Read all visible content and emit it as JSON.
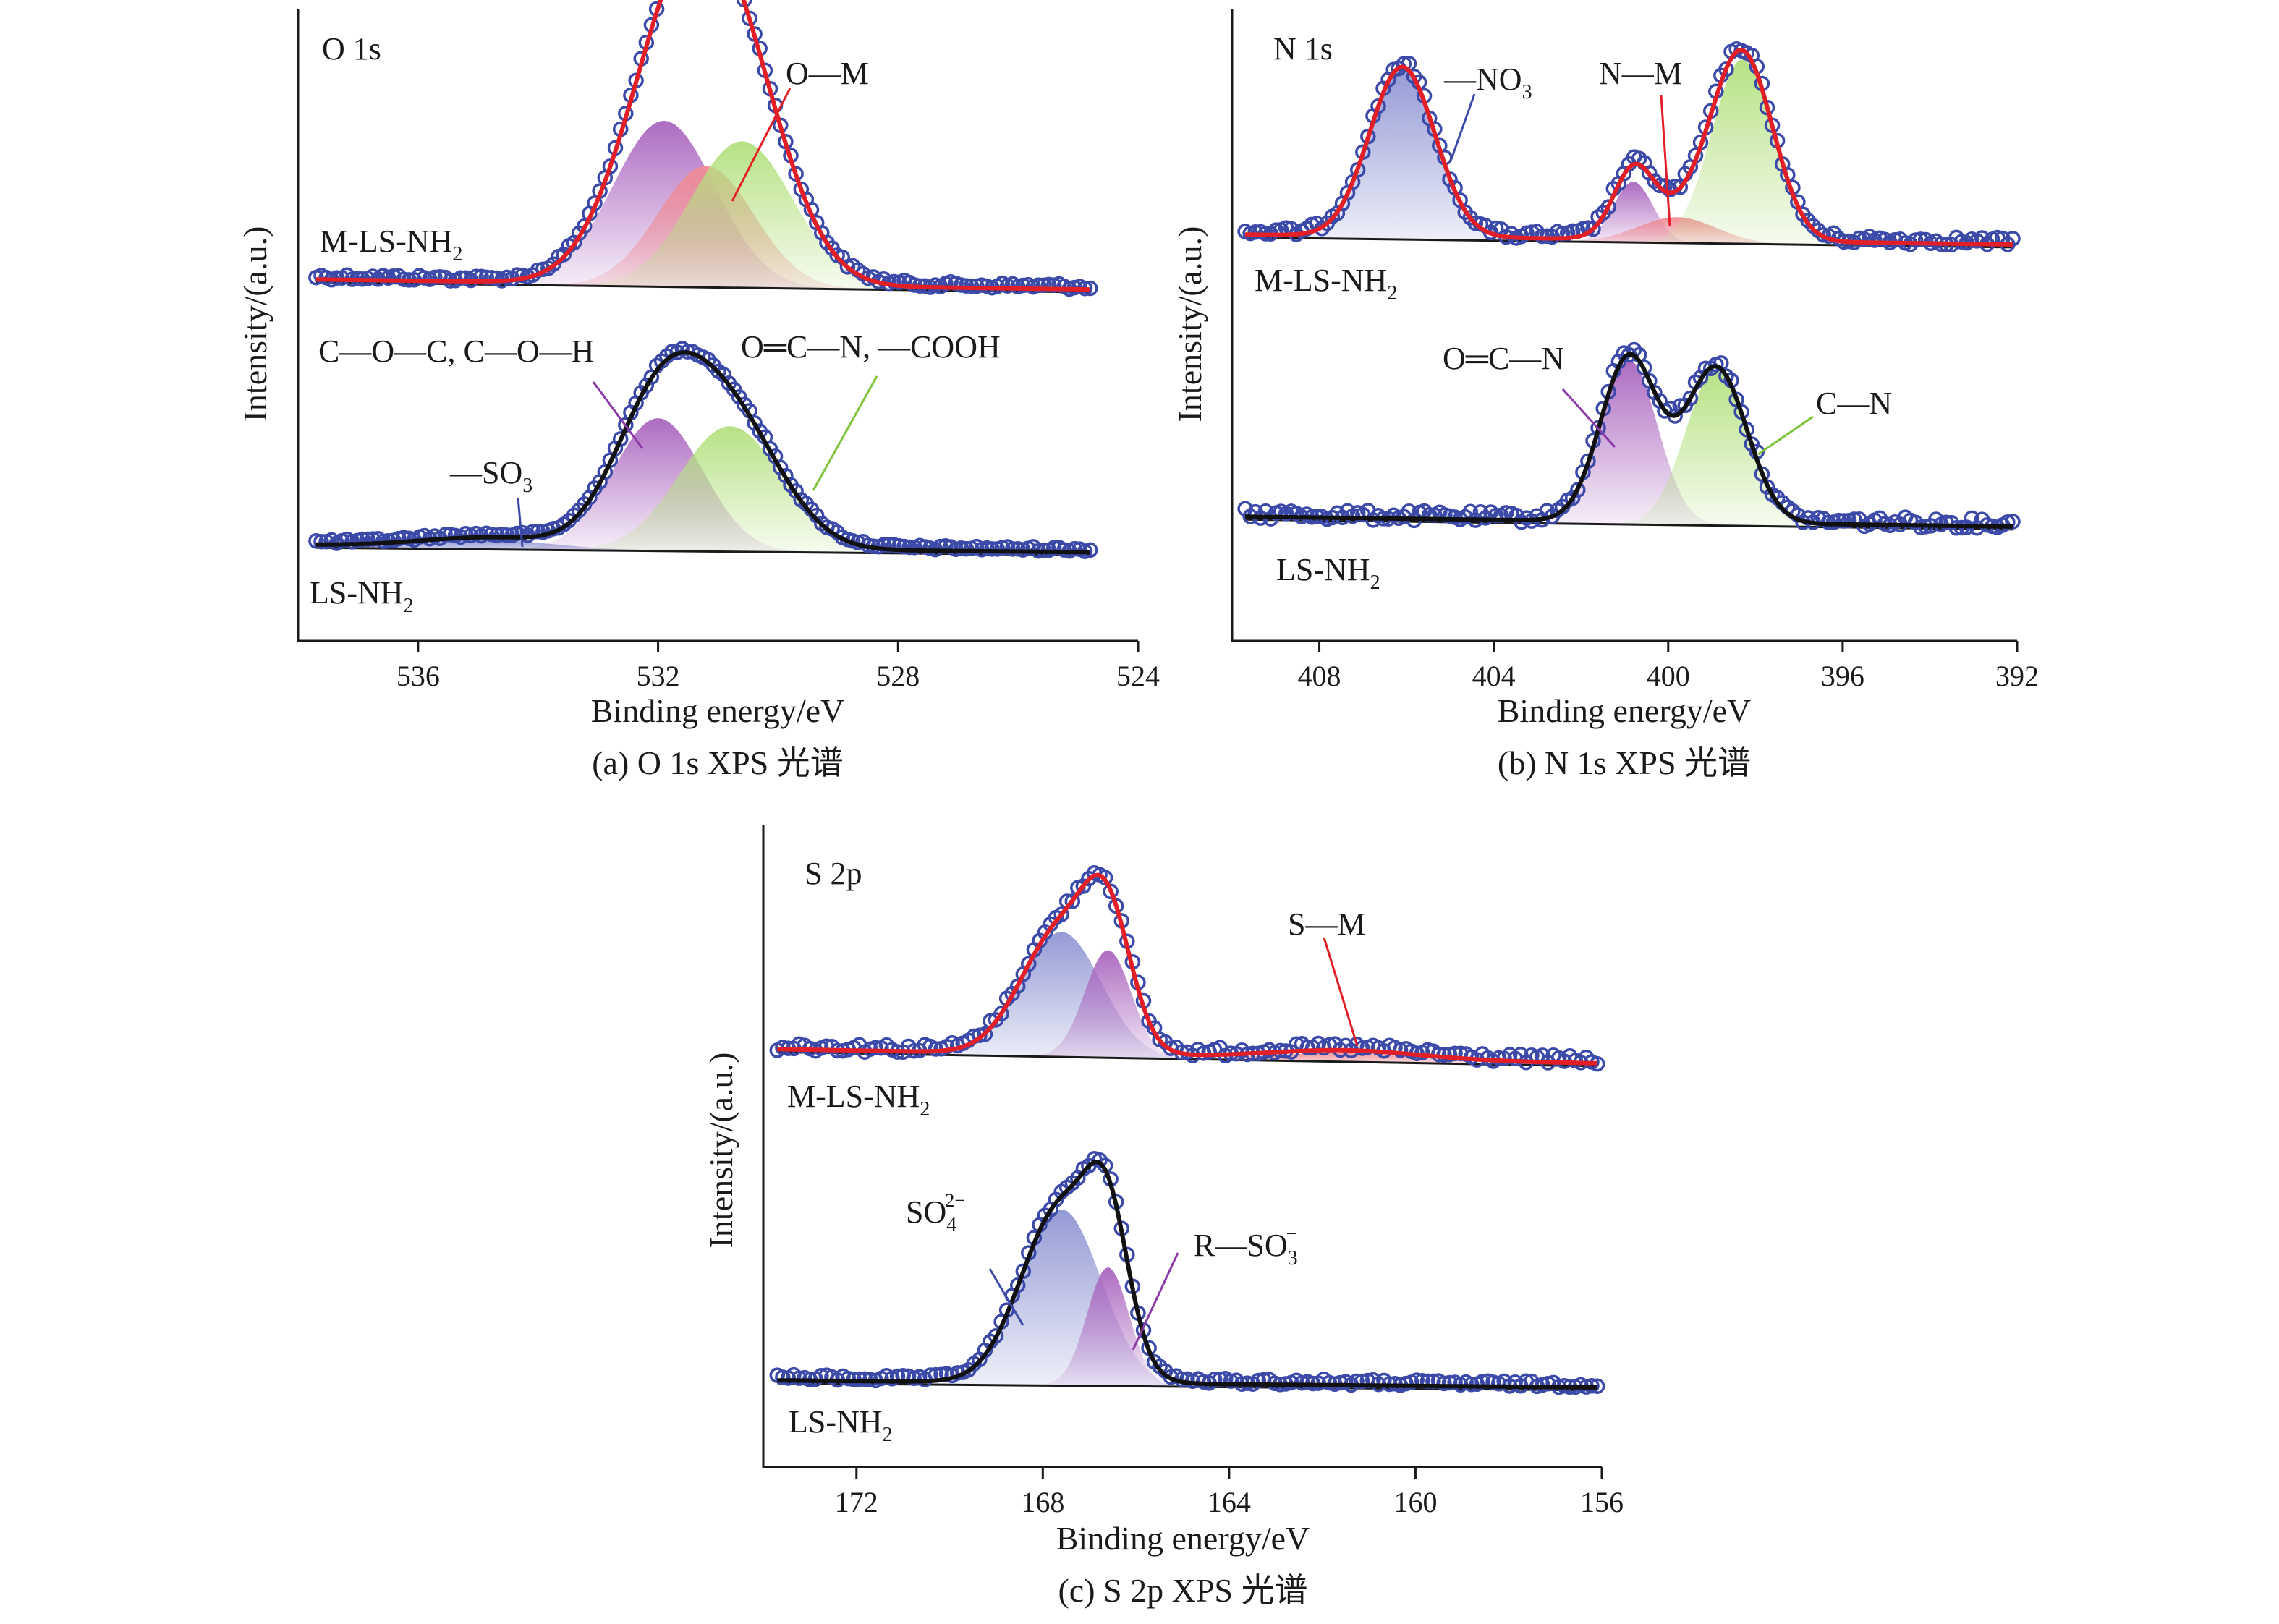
{
  "figure": {
    "colors": {
      "purple": "#a964be",
      "green": "#b3e07e",
      "pink": "#f08a93",
      "blue": "#8f95d3",
      "points": "#3b49a8",
      "fit_red": "#e21f26",
      "fit_black": "#111111"
    }
  },
  "chart_data": [
    {
      "type": "line",
      "panel_label": "O 1s",
      "caption": "(a) O 1s XPS 光谱",
      "xlabel": "Binding energy/eV",
      "ylabel": "Intensity/(a.u.)",
      "xlim": [
        538,
        524
      ],
      "xticks": [
        536,
        532,
        528,
        524
      ],
      "series": [
        {
          "name": "M-LS-NH",
          "name_sub": "2",
          "fit_color": "#e21f26",
          "components": [
            {
              "label": "",
              "center": 531.9,
              "amplitude": 0.85,
              "width": 0.85,
              "color": "#a964be"
            },
            {
              "label": "O—M",
              "label_sub": "",
              "center": 531.2,
              "amplitude": 0.62,
              "width": 0.8,
              "color": "#f08a93"
            },
            {
              "label": "",
              "center": 530.6,
              "amplitude": 0.75,
              "width": 0.85,
              "color": "#b3e07e"
            }
          ]
        },
        {
          "name": "LS-NH",
          "name_sub": "2",
          "fit_color": "#111111",
          "components": [
            {
              "label": "—SO",
              "label_sub": "3",
              "center": 534.8,
              "amplitude": 0.05,
              "width": 1.1,
              "color": "#8f95d3"
            },
            {
              "label": "C—O—C, C—O—H",
              "label_sub": "",
              "center": 532.0,
              "amplitude": 0.72,
              "width": 0.75,
              "color": "#a964be"
            },
            {
              "label": "O═C—N, —COOH",
              "label_sub": "",
              "center": 530.8,
              "amplitude": 0.68,
              "width": 0.85,
              "color": "#b3e07e"
            }
          ]
        }
      ]
    },
    {
      "type": "line",
      "panel_label": "N 1s",
      "caption": "(b) N 1s XPS 光谱",
      "xlabel": "Binding energy/eV",
      "ylabel": "Intensity/(a.u.)",
      "xlim": [
        410,
        392
      ],
      "xticks": [
        408,
        404,
        400,
        396,
        392
      ],
      "series": [
        {
          "name": "M-LS-NH",
          "name_sub": "2",
          "fit_color": "#e21f26",
          "components": [
            {
              "label": "—NO",
              "label_sub": "3",
              "center": 406.1,
              "amplitude": 0.92,
              "width": 0.75,
              "color": "#8f95d3"
            },
            {
              "label": "",
              "center": 400.8,
              "amplitude": 0.33,
              "width": 0.45,
              "color": "#a964be"
            },
            {
              "label": "N—M",
              "label_sub": "",
              "center": 399.8,
              "amplitude": 0.14,
              "width": 0.9,
              "color": "#f08a93"
            },
            {
              "label": "",
              "center": 398.3,
              "amplitude": 1.0,
              "width": 0.7,
              "color": "#b3e07e"
            }
          ]
        },
        {
          "name": "LS-NH",
          "name_sub": "2",
          "fit_color": "#111111",
          "components": [
            {
              "label": "O═C—N",
              "label_sub": "",
              "center": 400.9,
              "amplitude": 0.85,
              "width": 0.65,
              "color": "#a964be"
            },
            {
              "label": "C—N",
              "label_sub": "",
              "center": 398.9,
              "amplitude": 0.8,
              "width": 0.7,
              "color": "#b3e07e"
            }
          ]
        }
      ]
    },
    {
      "type": "line",
      "panel_label": "S 2p",
      "caption": "(c) S 2p XPS 光谱",
      "xlabel": "Binding energy/eV",
      "ylabel": "Intensity/(a.u.)",
      "xlim": [
        174,
        156
      ],
      "xticks": [
        172,
        168,
        164,
        160,
        156
      ],
      "series": [
        {
          "name": "M-LS-NH",
          "name_sub": "2",
          "fit_color": "#e21f26",
          "components": [
            {
              "label": "",
              "center": 167.6,
              "amplitude": 0.72,
              "width": 0.85,
              "color": "#8f95d3"
            },
            {
              "label": "",
              "center": 166.6,
              "amplitude": 0.62,
              "width": 0.5,
              "color": "#a964be"
            },
            {
              "label": "S—M",
              "label_sub": "",
              "center": 161.5,
              "amplitude": 0.05,
              "width": 1.6,
              "color": "#f08a93"
            }
          ]
        },
        {
          "name": "LS-NH",
          "name_sub": "2",
          "fit_color": "#111111",
          "components": [
            {
              "label": "SO",
              "label_sub": "4",
              "label_sup": "2−",
              "center": 167.6,
              "amplitude": 0.92,
              "width": 0.85,
              "color": "#8f95d3"
            },
            {
              "label": "R—SO",
              "label_sub": "3",
              "label_sup": "−",
              "center": 166.6,
              "amplitude": 0.62,
              "width": 0.45,
              "color": "#a964be"
            }
          ]
        }
      ]
    }
  ]
}
